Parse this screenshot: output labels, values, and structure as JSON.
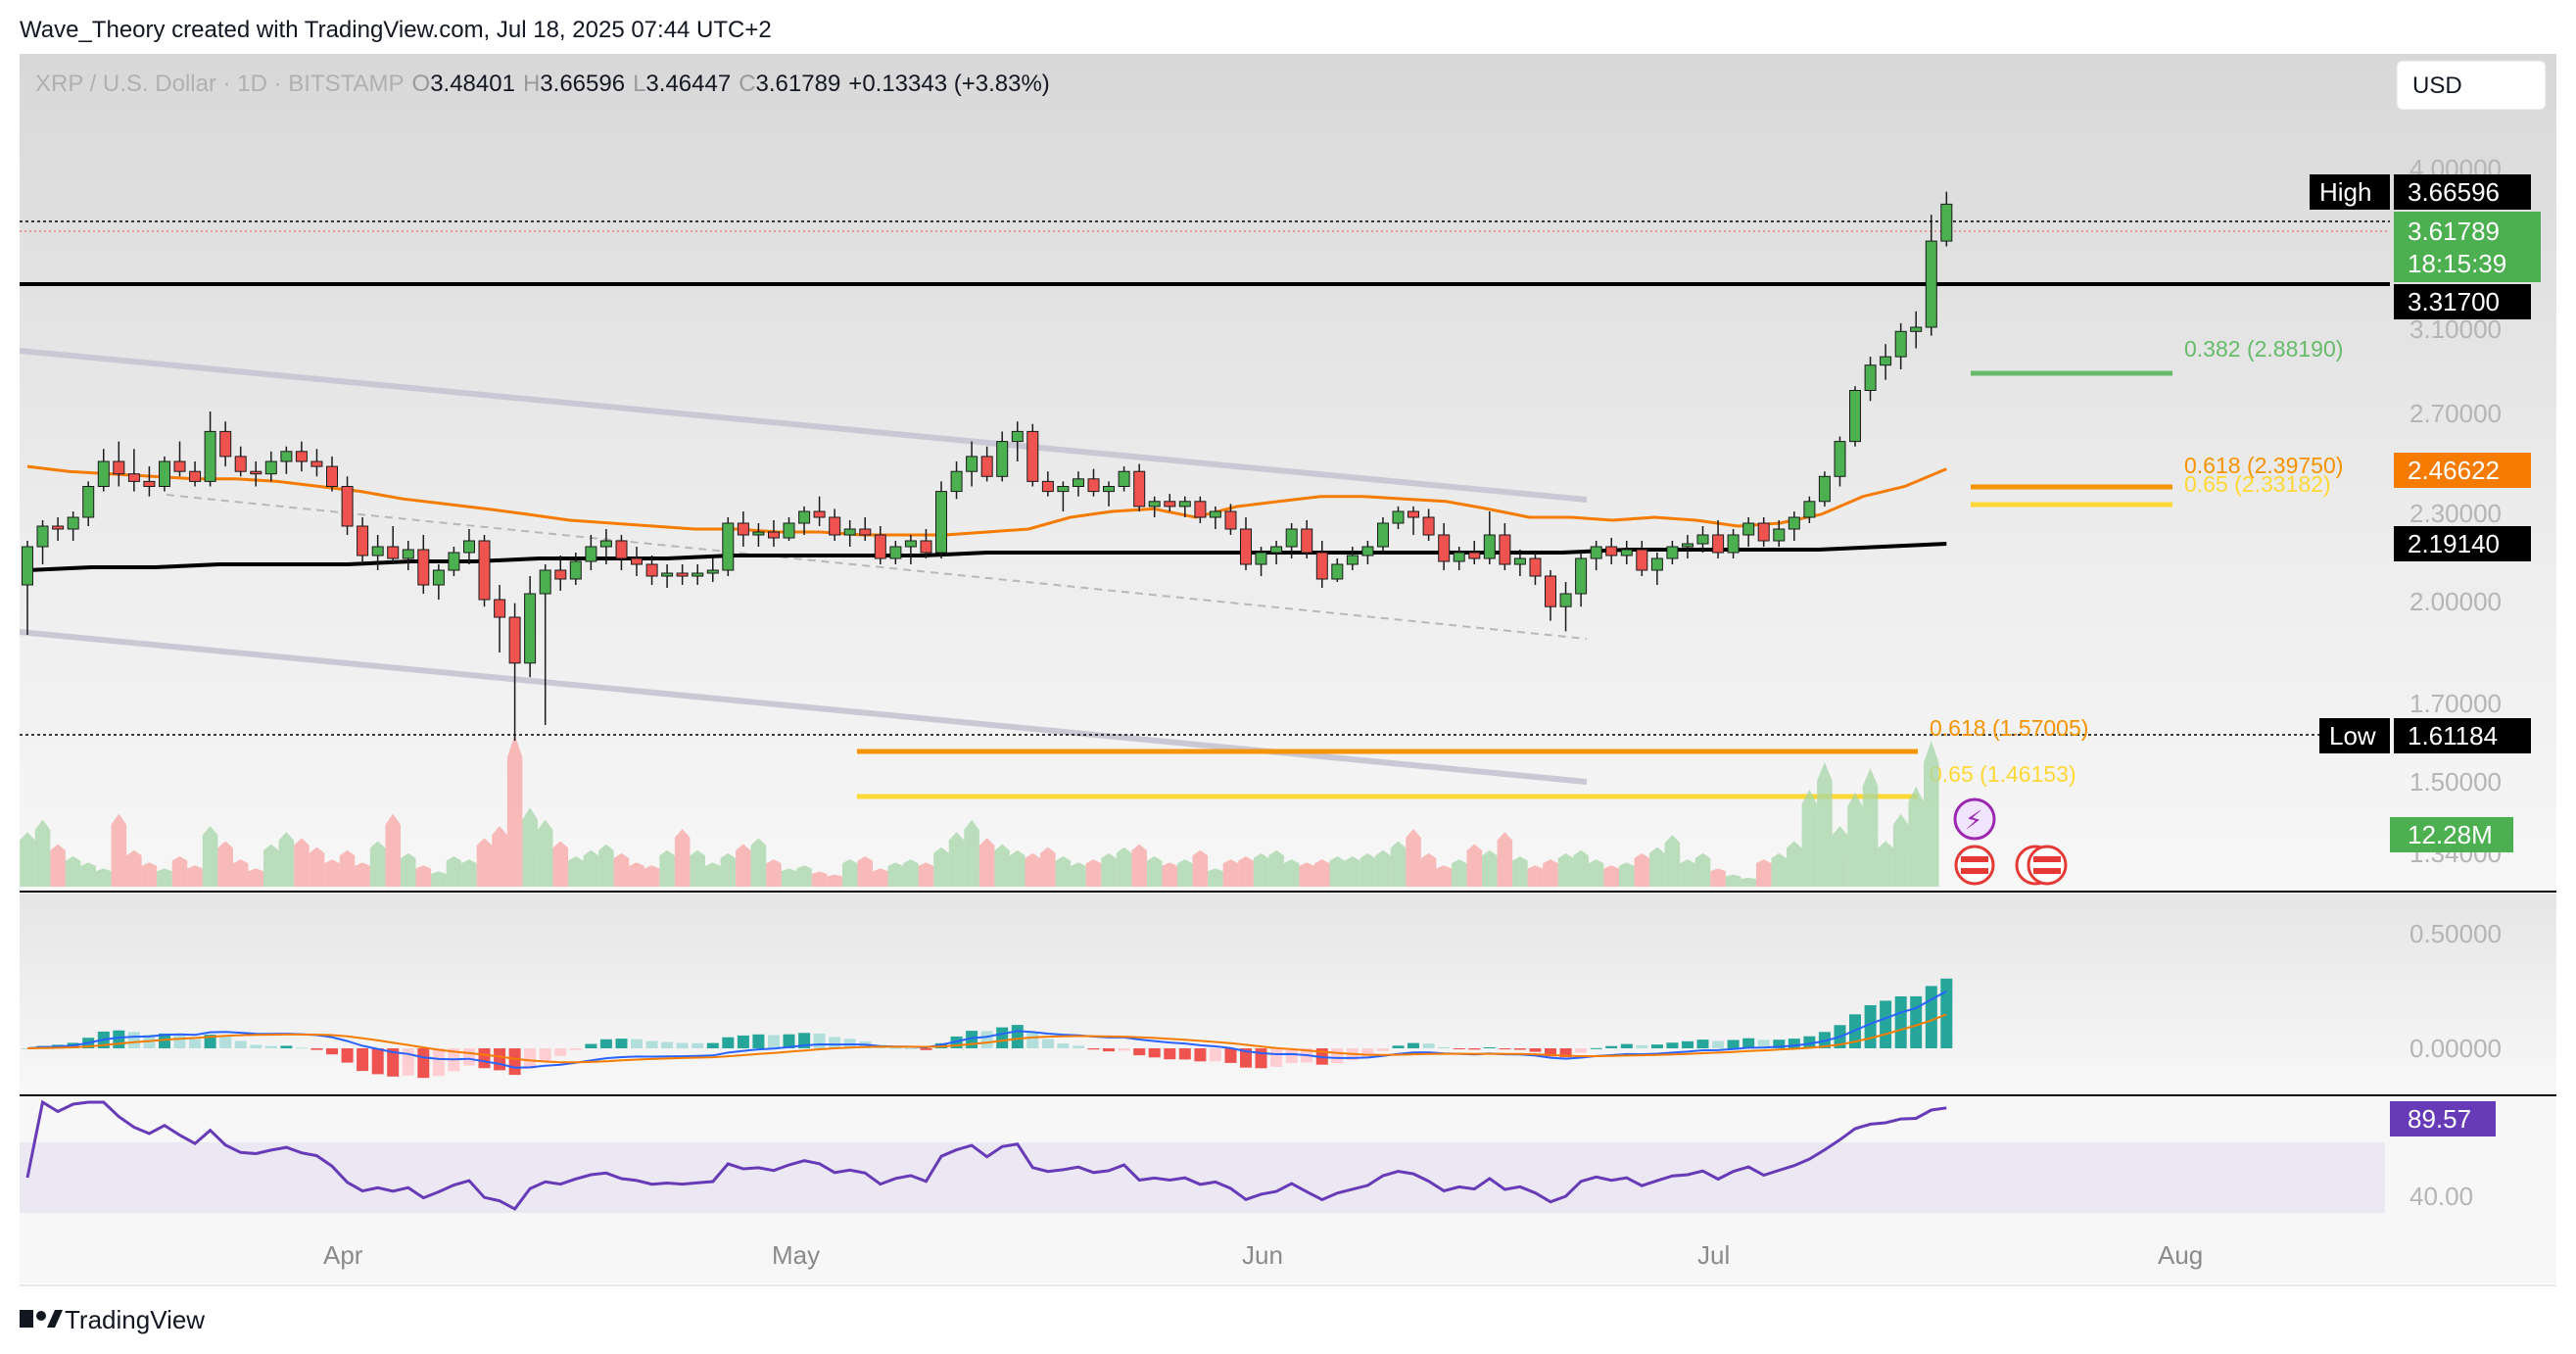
{
  "header": {
    "caption": "Wave_Theory created with TradingView.com, Jul 18, 2025 07:44 UTC+2",
    "symbol": "XRP / U.S. Dollar · 1D · BITSTAMP",
    "o_label": "O",
    "o_value": "3.48401",
    "h_label": "H",
    "h_value": "3.66596",
    "l_label": "L",
    "l_value": "3.46447",
    "c_label": "C",
    "c_value": "3.61789",
    "change": "+0.13343 (+3.83%)",
    "currency": "USD"
  },
  "footer": {
    "logo_text": "TradingView"
  },
  "colors": {
    "up": "#26a69a",
    "candle_up": "#4caf50",
    "candle_down": "#ef5350",
    "ema_orange": "#f57c00",
    "ema_black": "#000000",
    "fib_green": "#66bb6a",
    "fib_orange": "#f59300",
    "fib_yellow": "#fdd835",
    "rsi_purple": "#673ab7",
    "macd_blue": "#2962ff"
  },
  "price_axis": {
    "ticks": [
      "4.00000",
      "3.10000",
      "2.70000",
      "2.30000",
      "2.00000",
      "1.70000",
      "1.50000",
      "1.34000"
    ],
    "badges": {
      "high_label": "High",
      "high_value": "3.66596",
      "last_value": "3.61789",
      "countdown": "18:15:39",
      "resistance": "3.31700",
      "ema50": "2.46622",
      "ema200": "2.19140",
      "low_label": "Low",
      "low_value": "1.61184",
      "volume": "12.28M"
    }
  },
  "fib_labels": {
    "f382": "0.382 (2.88190)",
    "f618_hi": "0.618 (2.39750)",
    "f65_hi": "0.65 (2.33182)",
    "f618_lo": "0.618 (1.57005)",
    "f65_lo": "0.65 (1.46153)"
  },
  "macd_axis": {
    "ticks": [
      "0.50000",
      "0.00000"
    ]
  },
  "rsi_axis": {
    "ticks": [
      "40.00"
    ],
    "badge": "89.57"
  },
  "time_axis": {
    "labels": [
      "Apr",
      "May",
      "Jun",
      "Jul",
      "Aug"
    ]
  },
  "chart_data": {
    "type": "candlestick",
    "title": "XRP / U.S. Dollar · 1D · BITSTAMP",
    "x_start": "2025-03-06",
    "ylim": [
      1.34,
      4.0
    ],
    "horizontal_levels": [
      {
        "name": "resistance",
        "value": 3.317
      },
      {
        "name": "fib 0.382",
        "value": 2.8819
      },
      {
        "name": "fib 0.618",
        "value": 2.3975
      },
      {
        "name": "fib 0.65",
        "value": 2.33182
      },
      {
        "name": "fib 0.618",
        "value": 1.57005
      },
      {
        "name": "fib 0.65",
        "value": 1.46153
      }
    ],
    "ohlc": [
      [
        2.05,
        2.2,
        1.9,
        2.18
      ],
      [
        2.18,
        2.27,
        2.12,
        2.25
      ],
      [
        2.25,
        2.28,
        2.2,
        2.24
      ],
      [
        2.24,
        2.3,
        2.2,
        2.28
      ],
      [
        2.28,
        2.42,
        2.25,
        2.4
      ],
      [
        2.4,
        2.55,
        2.38,
        2.5
      ],
      [
        2.5,
        2.58,
        2.4,
        2.45
      ],
      [
        2.45,
        2.55,
        2.38,
        2.42
      ],
      [
        2.42,
        2.48,
        2.36,
        2.4
      ],
      [
        2.4,
        2.52,
        2.38,
        2.5
      ],
      [
        2.5,
        2.58,
        2.44,
        2.46
      ],
      [
        2.46,
        2.5,
        2.4,
        2.42
      ],
      [
        2.42,
        2.7,
        2.4,
        2.62
      ],
      [
        2.62,
        2.66,
        2.48,
        2.52
      ],
      [
        2.52,
        2.56,
        2.44,
        2.46
      ],
      [
        2.46,
        2.5,
        2.4,
        2.45
      ],
      [
        2.45,
        2.54,
        2.42,
        2.5
      ],
      [
        2.5,
        2.56,
        2.45,
        2.54
      ],
      [
        2.54,
        2.58,
        2.46,
        2.5
      ],
      [
        2.5,
        2.55,
        2.44,
        2.48
      ],
      [
        2.48,
        2.52,
        2.38,
        2.4
      ],
      [
        2.4,
        2.44,
        2.22,
        2.25
      ],
      [
        2.25,
        2.28,
        2.12,
        2.15
      ],
      [
        2.15,
        2.22,
        2.1,
        2.18
      ],
      [
        2.18,
        2.25,
        2.12,
        2.14
      ],
      [
        2.14,
        2.2,
        2.1,
        2.17
      ],
      [
        2.17,
        2.22,
        2.02,
        2.05
      ],
      [
        2.05,
        2.12,
        2.0,
        2.1
      ],
      [
        2.1,
        2.18,
        2.08,
        2.16
      ],
      [
        2.16,
        2.24,
        2.12,
        2.2
      ],
      [
        2.2,
        2.22,
        1.98,
        2.0
      ],
      [
        2.0,
        2.05,
        1.85,
        1.95
      ],
      [
        1.95,
        1.99,
        1.61,
        1.82
      ],
      [
        1.82,
        2.08,
        1.78,
        2.02
      ],
      [
        2.02,
        2.12,
        1.65,
        2.1
      ],
      [
        2.1,
        2.15,
        2.03,
        2.07
      ],
      [
        2.07,
        2.16,
        2.05,
        2.13
      ],
      [
        2.13,
        2.22,
        2.1,
        2.18
      ],
      [
        2.18,
        2.24,
        2.12,
        2.2
      ],
      [
        2.2,
        2.22,
        2.1,
        2.14
      ],
      [
        2.14,
        2.18,
        2.08,
        2.12
      ],
      [
        2.12,
        2.15,
        2.05,
        2.08
      ],
      [
        2.08,
        2.12,
        2.04,
        2.09
      ],
      [
        2.09,
        2.12,
        2.05,
        2.08
      ],
      [
        2.08,
        2.12,
        2.05,
        2.09
      ],
      [
        2.09,
        2.14,
        2.06,
        2.1
      ],
      [
        2.1,
        2.28,
        2.08,
        2.26
      ],
      [
        2.26,
        2.3,
        2.18,
        2.22
      ],
      [
        2.22,
        2.26,
        2.18,
        2.23
      ],
      [
        2.23,
        2.27,
        2.18,
        2.21
      ],
      [
        2.21,
        2.28,
        2.2,
        2.26
      ],
      [
        2.26,
        2.32,
        2.22,
        2.3
      ],
      [
        2.3,
        2.36,
        2.25,
        2.28
      ],
      [
        2.28,
        2.31,
        2.2,
        2.22
      ],
      [
        2.22,
        2.27,
        2.18,
        2.24
      ],
      [
        2.24,
        2.28,
        2.2,
        2.22
      ],
      [
        2.22,
        2.25,
        2.12,
        2.14
      ],
      [
        2.14,
        2.2,
        2.12,
        2.18
      ],
      [
        2.18,
        2.22,
        2.12,
        2.2
      ],
      [
        2.2,
        2.24,
        2.14,
        2.16
      ],
      [
        2.16,
        2.42,
        2.14,
        2.38
      ],
      [
        2.38,
        2.5,
        2.35,
        2.46
      ],
      [
        2.46,
        2.58,
        2.4,
        2.52
      ],
      [
        2.52,
        2.56,
        2.42,
        2.44
      ],
      [
        2.44,
        2.62,
        2.42,
        2.58
      ],
      [
        2.58,
        2.66,
        2.5,
        2.62
      ],
      [
        2.62,
        2.65,
        2.4,
        2.42
      ],
      [
        2.42,
        2.46,
        2.36,
        2.38
      ],
      [
        2.38,
        2.42,
        2.3,
        2.4
      ],
      [
        2.4,
        2.46,
        2.36,
        2.43
      ],
      [
        2.43,
        2.47,
        2.36,
        2.38
      ],
      [
        2.38,
        2.42,
        2.32,
        2.4
      ],
      [
        2.4,
        2.48,
        2.38,
        2.46
      ],
      [
        2.46,
        2.49,
        2.3,
        2.32
      ],
      [
        2.32,
        2.36,
        2.28,
        2.34
      ],
      [
        2.34,
        2.37,
        2.3,
        2.32
      ],
      [
        2.32,
        2.36,
        2.28,
        2.34
      ],
      [
        2.34,
        2.36,
        2.26,
        2.28
      ],
      [
        2.28,
        2.32,
        2.24,
        2.3
      ],
      [
        2.3,
        2.33,
        2.22,
        2.24
      ],
      [
        2.24,
        2.28,
        2.1,
        2.12
      ],
      [
        2.12,
        2.18,
        2.08,
        2.16
      ],
      [
        2.16,
        2.2,
        2.12,
        2.18
      ],
      [
        2.18,
        2.26,
        2.14,
        2.24
      ],
      [
        2.24,
        2.27,
        2.14,
        2.16
      ],
      [
        2.16,
        2.2,
        2.04,
        2.07
      ],
      [
        2.07,
        2.14,
        2.06,
        2.12
      ],
      [
        2.12,
        2.18,
        2.1,
        2.15
      ],
      [
        2.15,
        2.2,
        2.12,
        2.18
      ],
      [
        2.18,
        2.28,
        2.16,
        2.26
      ],
      [
        2.26,
        2.32,
        2.24,
        2.3
      ],
      [
        2.3,
        2.32,
        2.22,
        2.28
      ],
      [
        2.28,
        2.31,
        2.2,
        2.22
      ],
      [
        2.22,
        2.26,
        2.1,
        2.13
      ],
      [
        2.13,
        2.18,
        2.1,
        2.16
      ],
      [
        2.16,
        2.2,
        2.12,
        2.14
      ],
      [
        2.14,
        2.3,
        2.12,
        2.22
      ],
      [
        2.22,
        2.26,
        2.1,
        2.12
      ],
      [
        2.12,
        2.17,
        2.08,
        2.14
      ],
      [
        2.14,
        2.16,
        2.05,
        2.08
      ],
      [
        2.08,
        2.1,
        1.94,
        1.98
      ],
      [
        1.98,
        2.06,
        1.91,
        2.02
      ],
      [
        2.02,
        2.16,
        1.98,
        2.14
      ],
      [
        2.14,
        2.2,
        2.1,
        2.18
      ],
      [
        2.18,
        2.21,
        2.12,
        2.15
      ],
      [
        2.15,
        2.2,
        2.12,
        2.17
      ],
      [
        2.17,
        2.2,
        2.08,
        2.1
      ],
      [
        2.1,
        2.16,
        2.05,
        2.14
      ],
      [
        2.14,
        2.2,
        2.12,
        2.18
      ],
      [
        2.18,
        2.22,
        2.14,
        2.19
      ],
      [
        2.19,
        2.25,
        2.16,
        2.22
      ],
      [
        2.22,
        2.27,
        2.14,
        2.16
      ],
      [
        2.16,
        2.24,
        2.14,
        2.22
      ],
      [
        2.22,
        2.28,
        2.18,
        2.26
      ],
      [
        2.26,
        2.28,
        2.18,
        2.2
      ],
      [
        2.2,
        2.27,
        2.18,
        2.24
      ],
      [
        2.24,
        2.3,
        2.2,
        2.28
      ],
      [
        2.28,
        2.36,
        2.26,
        2.34
      ],
      [
        2.34,
        2.46,
        2.32,
        2.44
      ],
      [
        2.44,
        2.6,
        2.4,
        2.58
      ],
      [
        2.58,
        2.82,
        2.56,
        2.8
      ],
      [
        2.8,
        2.96,
        2.75,
        2.92
      ],
      [
        2.92,
        3.02,
        2.85,
        2.96
      ],
      [
        2.96,
        3.12,
        2.9,
        3.08
      ],
      [
        3.08,
        3.18,
        3.0,
        3.1
      ],
      [
        3.1,
        3.58,
        3.06,
        3.48
      ],
      [
        3.48,
        3.67,
        3.46,
        3.62
      ]
    ],
    "volume": [
      1.8,
      2.2,
      1.4,
      1.0,
      0.8,
      0.6,
      2.4,
      1.2,
      0.8,
      0.6,
      1.0,
      0.7,
      2.0,
      1.5,
      0.9,
      0.6,
      1.4,
      1.8,
      1.6,
      1.3,
      0.9,
      1.2,
      0.8,
      1.5,
      2.4,
      1.1,
      0.7,
      0.5,
      1.0,
      0.9,
      1.6,
      2.0,
      5.0,
      2.6,
      2.2,
      1.5,
      1.0,
      1.2,
      1.4,
      1.1,
      0.8,
      0.7,
      1.2,
      1.9,
      1.2,
      0.8,
      1.1,
      1.4,
      1.6,
      0.9,
      0.6,
      0.7,
      0.5,
      0.4,
      0.9,
      1.0,
      0.6,
      0.8,
      0.9,
      0.8,
      1.3,
      1.8,
      2.2,
      1.6,
      1.4,
      1.2,
      1.1,
      1.3,
      1.0,
      0.8,
      0.9,
      1.1,
      1.3,
      1.4,
      1.0,
      0.8,
      0.9,
      1.2,
      0.6,
      0.9,
      1.0,
      1.1,
      1.2,
      0.9,
      0.8,
      0.9,
      1.0,
      1.0,
      1.1,
      1.2,
      1.5,
      1.9,
      1.1,
      0.7,
      0.9,
      1.4,
      1.2,
      1.8,
      1.0,
      0.7,
      0.9,
      1.1,
      1.2,
      0.9,
      0.7,
      0.8,
      1.1,
      1.3,
      1.7,
      0.9,
      1.1,
      0.6,
      0.4,
      0.3,
      0.9,
      1.1,
      1.5,
      3.2,
      4.1,
      2.0,
      3.1,
      3.9,
      1.5,
      2.4,
      3.3,
      4.8
    ],
    "volume_unit": "M",
    "ema50": [
      2.48,
      2.46,
      2.45,
      2.44,
      2.43,
      2.43,
      2.42,
      2.4,
      2.38,
      2.35,
      2.33,
      2.31,
      2.29,
      2.27,
      2.26,
      2.25,
      2.24,
      2.24,
      2.23,
      2.23,
      2.22,
      2.22,
      2.22,
      2.23,
      2.24,
      2.28,
      2.3,
      2.31,
      2.28,
      2.32,
      2.34,
      2.36,
      2.36,
      2.35,
      2.34,
      2.31,
      2.28,
      2.28,
      2.27,
      2.28,
      2.27,
      2.25,
      2.26,
      2.29,
      2.36,
      2.4,
      2.47
    ],
    "ema200": [
      2.1,
      2.11,
      2.11,
      2.12,
      2.12,
      2.12,
      2.13,
      2.13,
      2.14,
      2.14,
      2.14,
      2.15,
      2.15,
      2.15,
      2.15,
      2.16,
      2.16,
      2.16,
      2.16,
      2.16,
      2.16,
      2.16,
      2.16,
      2.16,
      2.16,
      2.17,
      2.17,
      2.17,
      2.17,
      2.18,
      2.19
    ],
    "macd_hist_sign": "negative Apr–Jun, positive July rising",
    "macd_ylim": [
      -0.2,
      0.6
    ],
    "rsi_last": 89.57,
    "time_labels": [
      "Apr",
      "May",
      "Jun",
      "Jul",
      "Aug"
    ]
  }
}
